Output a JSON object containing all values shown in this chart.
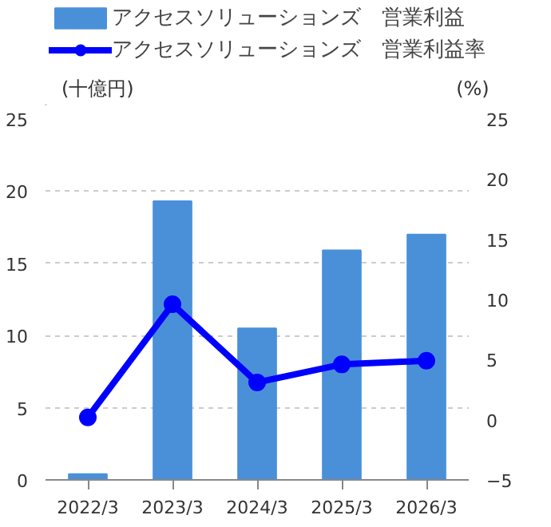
{
  "chart_data": {
    "type": "bar",
    "categories": [
      "2022/3",
      "2023/3",
      "2024/3",
      "2025/3",
      "2026/3"
    ],
    "ylabel": "(十億円)",
    "y2label": "(%)",
    "series": [
      {
        "name": "アクセスソリューションズ　営業利益",
        "color": "#4a90d9",
        "values": [
          0.4,
          19.3,
          10.5,
          15.9,
          17.0
        ]
      },
      {
        "name": "アクセスソリューションズ　営業利益率",
        "type": "line",
        "axis": "y2",
        "color": "#0000ff",
        "marker": "circle",
        "values": [
          0.2,
          9.6,
          3.1,
          4.6,
          4.9
        ]
      }
    ],
    "ylim": [
      0,
      25
    ],
    "yticks": [
      0,
      5,
      10,
      15,
      20,
      25
    ],
    "y2lim": [
      -5,
      25
    ],
    "y2ticks": [
      -5,
      0,
      5,
      10,
      15,
      20,
      25
    ],
    "grid": "y",
    "legend": "top"
  }
}
